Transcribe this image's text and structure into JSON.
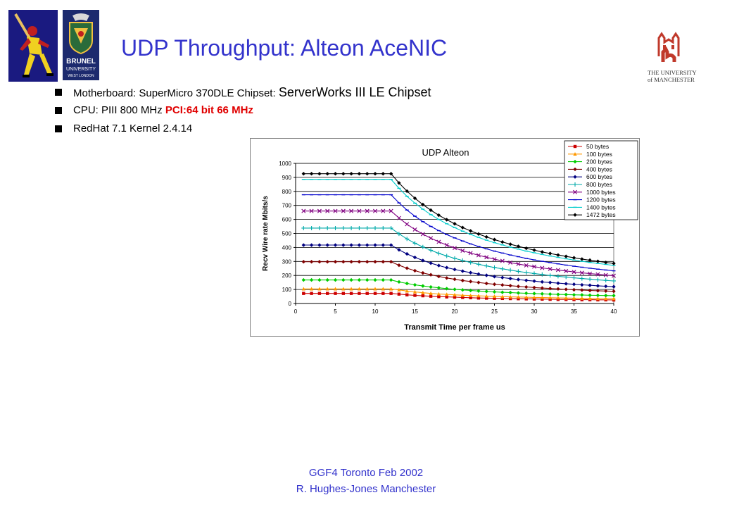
{
  "slide": {
    "title": "UDP Throughput: Alteon AceNIC",
    "bullets": [
      {
        "label1": "Motherboard: SuperMicro 370DLE  Chipset: ",
        "label2": "ServerWorks III LE Chipset"
      },
      {
        "label1": "CPU: PIII 800 MHz ",
        "label2": "PCI:64 bit 66 MHz"
      },
      {
        "label1": "RedHat 7.1 Kernel 2.4.14"
      }
    ],
    "footer_line1": "GGF4 Toronto Feb 2002",
    "footer_line2": "R. Hughes-Jones  Manchester",
    "colors": {
      "title": "#3333cc",
      "highlight": "#e00000",
      "footer": "#3333cc"
    },
    "logos": {
      "left": "baseball-player-logo",
      "middle": "brunel-university-logo",
      "right": "university-of-manchester-logo"
    },
    "manchester_logo_text": [
      "THE UNIVERSITY",
      "of MANCHESTER"
    ],
    "brunel_logo_text": [
      "BRUNEL",
      "UNIVERSITY",
      "WEST LONDON"
    ]
  },
  "chart_data": {
    "type": "line",
    "title": "UDP Alteon",
    "xlabel": "Transmit Time per frame us",
    "ylabel": "Recv Wire rate Mbits/s",
    "xlim": [
      0,
      40
    ],
    "ylim": [
      0,
      1000
    ],
    "xticks": [
      0,
      5,
      10,
      15,
      20,
      25,
      30,
      35,
      40
    ],
    "yticks": [
      0,
      100,
      200,
      300,
      400,
      500,
      600,
      700,
      800,
      900,
      1000
    ],
    "grid": "horizontal",
    "legend_position": "top-right",
    "x": [
      1,
      2,
      3,
      4,
      5,
      6,
      7,
      8,
      9,
      10,
      11,
      12,
      13,
      14,
      15,
      16,
      17,
      18,
      19,
      20,
      21,
      22,
      23,
      24,
      25,
      26,
      27,
      28,
      29,
      30,
      31,
      32,
      33,
      34,
      35,
      36,
      37,
      38,
      39,
      40
    ],
    "series": [
      {
        "name": "50 bytes",
        "color": "#cc0000",
        "marker": "square",
        "values": [
          72,
          72,
          72,
          72,
          72,
          72,
          72,
          72,
          72,
          72,
          72,
          72,
          67,
          62,
          58,
          55,
          52,
          49,
          47,
          45,
          43,
          41,
          39,
          38,
          37,
          36,
          35,
          34,
          33,
          32,
          31,
          30,
          29,
          29,
          28,
          27,
          27,
          26,
          26,
          25
        ]
      },
      {
        "name": "100 bytes",
        "color": "#ff9900",
        "marker": "triangle",
        "values": [
          104,
          104,
          104,
          104,
          104,
          104,
          104,
          104,
          104,
          104,
          104,
          104,
          97,
          89,
          83,
          77,
          72,
          68,
          65,
          62,
          59,
          57,
          55,
          53,
          51,
          49,
          47,
          46,
          45,
          43,
          42,
          41,
          40,
          39,
          38,
          37,
          36,
          35,
          35,
          34
        ]
      },
      {
        "name": "200 bytes",
        "color": "#00cc00",
        "marker": "diamond",
        "values": [
          168,
          168,
          168,
          168,
          168,
          168,
          168,
          168,
          168,
          168,
          168,
          168,
          154,
          143,
          133,
          125,
          118,
          112,
          106,
          101,
          97,
          93,
          89,
          86,
          83,
          80,
          78,
          75,
          73,
          71,
          69,
          67,
          65,
          64,
          62,
          61,
          59,
          58,
          57,
          56
        ]
      },
      {
        "name": "400 bytes",
        "color": "#800000",
        "marker": "diamond",
        "values": [
          298,
          298,
          298,
          298,
          298,
          298,
          298,
          298,
          298,
          298,
          298,
          298,
          273,
          252,
          234,
          218,
          205,
          193,
          182,
          173,
          164,
          157,
          150,
          143,
          137,
          132,
          127,
          122,
          118,
          114,
          110,
          107,
          104,
          101,
          98,
          96,
          93,
          91,
          89,
          87
        ]
      },
      {
        "name": "600 bytes",
        "color": "#000080",
        "marker": "diamond",
        "values": [
          417,
          417,
          417,
          417,
          417,
          417,
          417,
          417,
          417,
          417,
          417,
          417,
          383,
          354,
          329,
          307,
          288,
          271,
          256,
          243,
          231,
          220,
          210,
          201,
          192,
          185,
          178,
          171,
          165,
          160,
          154,
          150,
          145,
          141,
          137,
          133,
          130,
          126,
          123,
          120
        ]
      },
      {
        "name": "800 bytes",
        "color": "#00aaaa",
        "marker": "plus",
        "values": [
          538,
          538,
          538,
          538,
          538,
          538,
          538,
          538,
          538,
          538,
          538,
          538,
          497,
          461,
          430,
          403,
          380,
          358,
          339,
          322,
          307,
          293,
          280,
          268,
          257,
          247,
          238,
          229,
          221,
          214,
          207,
          200,
          194,
          189,
          183,
          178,
          174,
          169,
          165,
          161
        ]
      },
      {
        "name": "1000 bytes",
        "color": "#800080",
        "marker": "x",
        "values": [
          660,
          660,
          660,
          660,
          660,
          660,
          660,
          660,
          660,
          660,
          660,
          660,
          610,
          566,
          528,
          495,
          466,
          440,
          417,
          396,
          377,
          360,
          344,
          330,
          316,
          304,
          292,
          282,
          272,
          263,
          254,
          246,
          239,
          232,
          225,
          219,
          213,
          208,
          203,
          198
        ]
      },
      {
        "name": "1200 bytes",
        "color": "#0000cc",
        "marker": "dash",
        "values": [
          776,
          776,
          776,
          776,
          776,
          776,
          776,
          776,
          776,
          776,
          776,
          776,
          718,
          667,
          623,
          584,
          550,
          520,
          492,
          468,
          446,
          425,
          407,
          390,
          374,
          360,
          346,
          334,
          322,
          311,
          301,
          292,
          283,
          274,
          266,
          259,
          252,
          245,
          239,
          233
        ]
      },
      {
        "name": "1400 bytes",
        "color": "#00cccc",
        "marker": "dash",
        "values": [
          886,
          886,
          886,
          886,
          886,
          886,
          886,
          886,
          886,
          886,
          886,
          886,
          822,
          765,
          716,
          673,
          634,
          600,
          569,
          541,
          516,
          493,
          472,
          452,
          434,
          418,
          402,
          388,
          374,
          362,
          350,
          339,
          329,
          319,
          310,
          301,
          293,
          286,
          279,
          272
        ]
      },
      {
        "name": "1472 bytes",
        "color": "#000000",
        "marker": "diamond",
        "values": [
          926,
          926,
          926,
          926,
          926,
          926,
          926,
          926,
          926,
          926,
          926,
          926,
          860,
          802,
          751,
          706,
          666,
          630,
          598,
          569,
          542,
          518,
          496,
          475,
          456,
          439,
          423,
          408,
          394,
          381,
          368,
          357,
          346,
          336,
          326,
          317,
          309,
          301,
          293,
          286
        ]
      }
    ]
  }
}
